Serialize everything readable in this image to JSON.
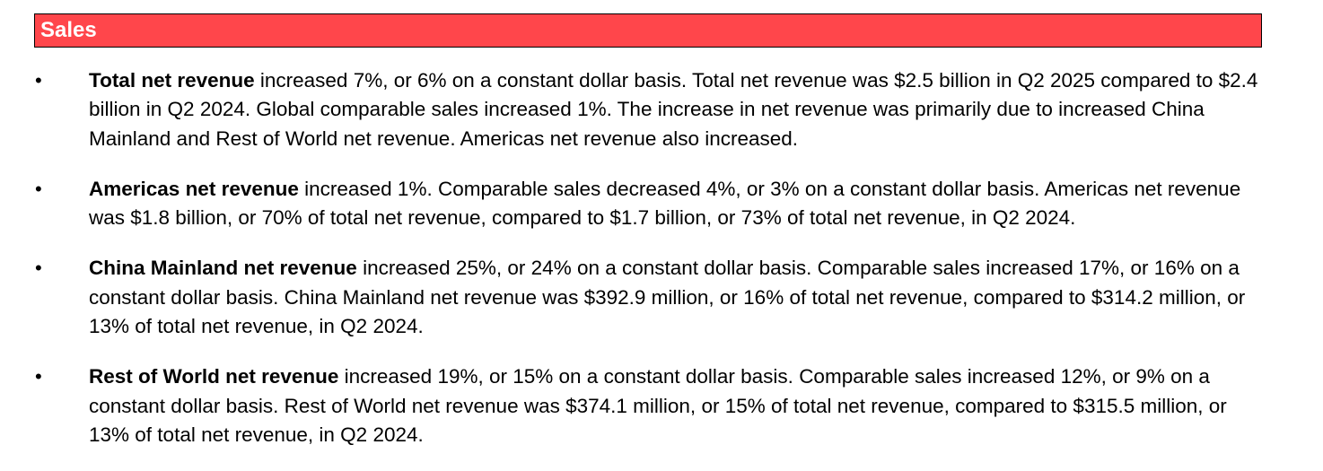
{
  "section": {
    "title": "Sales",
    "header_color": "#ff464b"
  },
  "bullets": [
    {
      "lead": "Total net revenue",
      "text": " increased 7%, or 6% on a constant dollar basis. Total net revenue was $2.5 billion in Q2 2025 compared to $2.4 billion in Q2 2024. Global comparable sales increased 1%. The increase in net revenue was primarily due to increased China Mainland and Rest of World net revenue. Americas net revenue also increased."
    },
    {
      "lead": "Americas net revenue",
      "text": " increased 1%. Comparable sales decreased 4%, or 3% on a constant dollar basis. Americas net revenue was $1.8 billion, or 70% of total net revenue, compared to $1.7 billion, or 73% of total net revenue, in Q2 2024."
    },
    {
      "lead": "China Mainland net revenue",
      "text": " increased 25%, or 24% on a constant dollar basis. Comparable sales increased 17%, or 16% on a constant dollar basis. China Mainland net revenue was $392.9 million, or 16% of total net revenue, compared to $314.2 million, or 13% of total net revenue, in Q2 2024."
    },
    {
      "lead": "Rest of World net revenue",
      "text": " increased 19%, or 15% on a constant dollar basis. Comparable sales increased 12%, or 9% on a constant dollar basis. Rest of World net revenue was $374.1 million, or 15% of total net revenue, compared to $315.5 million, or 13% of total net revenue, in Q2 2024."
    }
  ],
  "bullet_symbol": "•"
}
